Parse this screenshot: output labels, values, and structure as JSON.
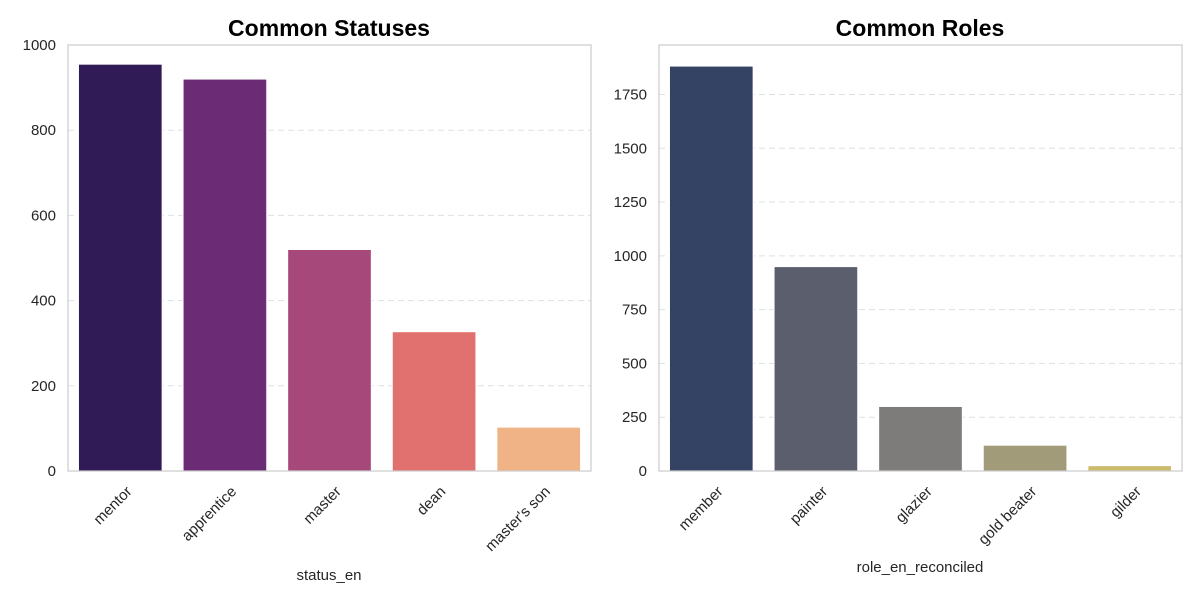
{
  "chart_data": [
    {
      "type": "bar",
      "title": "Common Statuses",
      "xlabel": "status_en",
      "ylabel": "",
      "categories": [
        "mentor",
        "apprentice",
        "master",
        "dean",
        "master's son"
      ],
      "values": [
        955,
        920,
        520,
        327,
        103
      ],
      "colors": [
        "#311b57",
        "#6b2c75",
        "#a6497a",
        "#e0716e",
        "#efb386"
      ],
      "ylim": [
        0,
        1000
      ],
      "yticks": [
        0,
        200,
        400,
        600,
        800,
        1000
      ],
      "ytick_labels": [
        "0",
        "200",
        "400",
        "600",
        "800",
        "1000"
      ],
      "grid": true
    },
    {
      "type": "bar",
      "title": "Common Roles",
      "xlabel": "role_en_reconciled",
      "ylabel": "",
      "categories": [
        "member",
        "painter",
        "glazier",
        "gold beater",
        "gilder"
      ],
      "values": [
        1882,
        950,
        300,
        120,
        25
      ],
      "colors": [
        "#344263",
        "#5b5f6d",
        "#7e7c7a",
        "#a29b79",
        "#cdbb6c"
      ],
      "ylim": [
        0,
        1980
      ],
      "yticks": [
        0,
        250,
        500,
        750,
        1000,
        1250,
        1500,
        1750
      ],
      "ytick_labels": [
        "0",
        "250",
        "500",
        "750",
        "1000",
        "1250",
        "1500",
        "1750"
      ],
      "grid": true
    }
  ]
}
